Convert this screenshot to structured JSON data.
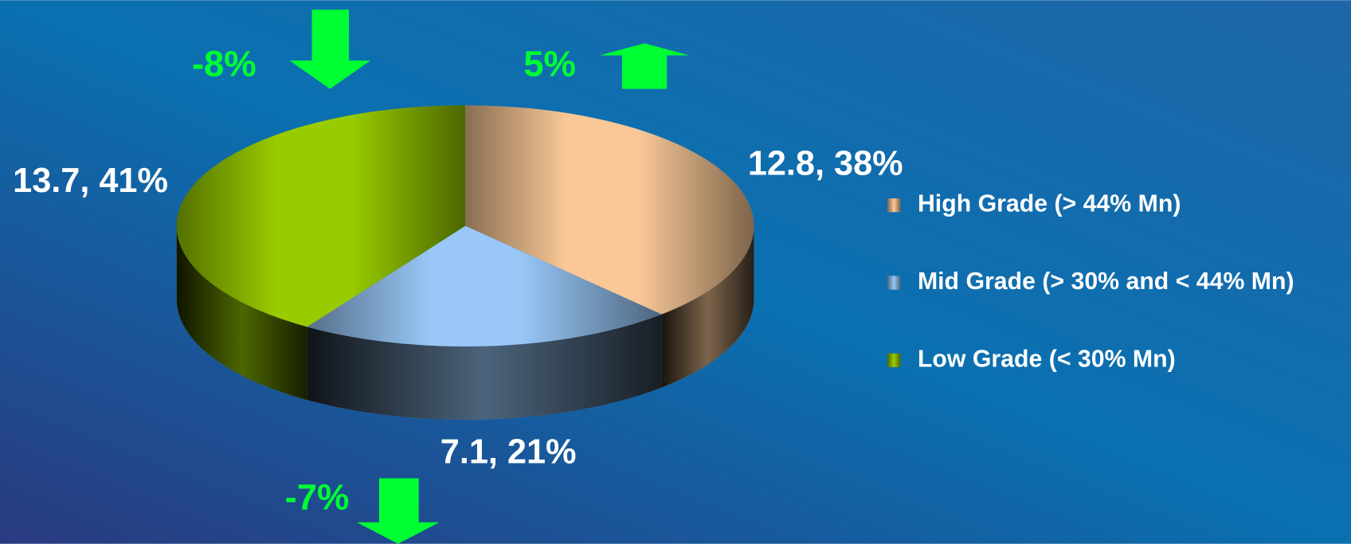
{
  "chart_data": {
    "type": "pie",
    "categories": [
      "High Grade (> 44% Mn)",
      "Mid Grade (> 30% and < 44% Mn)",
      "Low Grade (< 30% Mn)"
    ],
    "values": [
      12.8,
      7.1,
      13.7
    ],
    "value_labels": [
      "12.8, 38%",
      "7.1, 21%",
      "13.7, 41%"
    ],
    "colors": [
      "#f9c896",
      "#99c8f8",
      "#99cc00"
    ],
    "annotations": [
      "5%",
      "-7%",
      "-8%"
    ],
    "legend": "right"
  }
}
